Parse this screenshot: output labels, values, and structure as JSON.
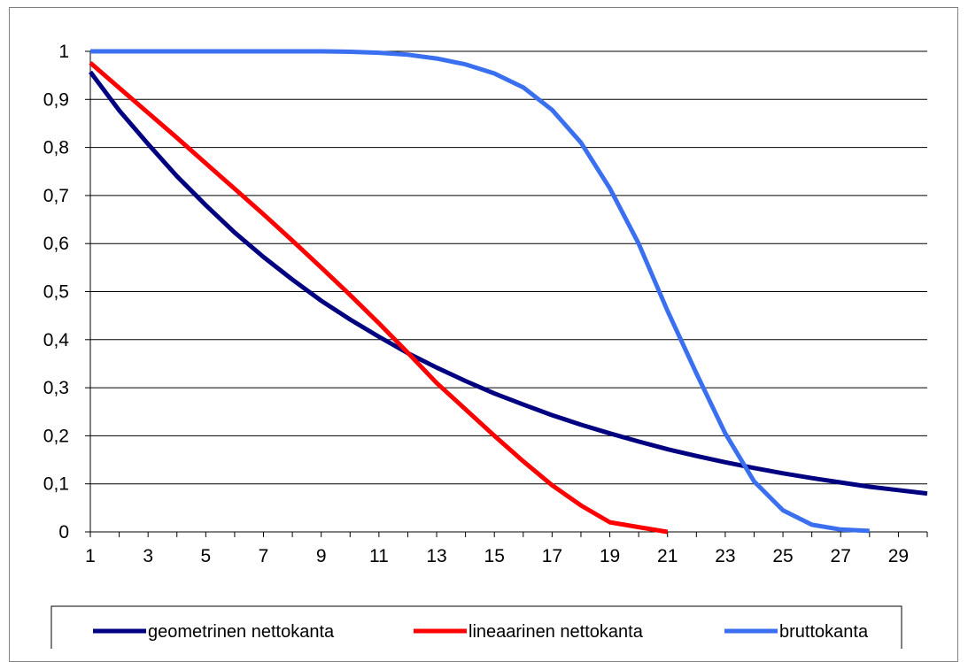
{
  "chart_data": {
    "type": "line",
    "x": [
      1,
      2,
      3,
      4,
      5,
      6,
      7,
      8,
      9,
      10,
      11,
      12,
      13,
      14,
      15,
      16,
      17,
      18,
      19,
      20,
      21,
      22,
      23,
      24,
      25,
      26,
      27,
      28,
      29,
      30
    ],
    "x_tick_labels": [
      "1",
      "3",
      "5",
      "7",
      "9",
      "11",
      "13",
      "15",
      "17",
      "19",
      "21",
      "23",
      "25",
      "27",
      "29"
    ],
    "y_tick_labels": [
      "0",
      "0,1",
      "0,2",
      "0,3",
      "0,4",
      "0,5",
      "0,6",
      "0,7",
      "0,8",
      "0,9",
      "1"
    ],
    "ylim": [
      0,
      1
    ],
    "grid": "horizontal",
    "legend_position": "bottom",
    "series": [
      {
        "name": "geometrinen nettokanta",
        "color": "#000080",
        "x": [
          1,
          2,
          3,
          4,
          5,
          6,
          7,
          8,
          9,
          10,
          11,
          12,
          13,
          14,
          15,
          16,
          17,
          18,
          19,
          20,
          21,
          22,
          23,
          24,
          25,
          26,
          27,
          28,
          29,
          30
        ],
        "values": [
          0.957,
          0.877,
          0.807,
          0.74,
          0.68,
          0.623,
          0.572,
          0.525,
          0.481,
          0.442,
          0.406,
          0.372,
          0.342,
          0.314,
          0.288,
          0.265,
          0.243,
          0.223,
          0.205,
          0.188,
          0.172,
          0.158,
          0.145,
          0.133,
          0.122,
          0.112,
          0.103,
          0.094,
          0.087,
          0.08
        ]
      },
      {
        "name": "lineaarinen nettokanta",
        "color": "#ff0000",
        "x": [
          1,
          2,
          3,
          4,
          5,
          6,
          7,
          8,
          9,
          10,
          11,
          12,
          13,
          14,
          15,
          16,
          17,
          18,
          19,
          20,
          21
        ],
        "values": [
          0.976,
          0.924,
          0.872,
          0.82,
          0.767,
          0.714,
          0.661,
          0.606,
          0.55,
          0.493,
          0.434,
          0.373,
          0.31,
          0.255,
          0.2,
          0.147,
          0.097,
          0.055,
          0.02,
          0.01,
          0.0
        ]
      },
      {
        "name": "bruttokanta",
        "color": "#3a6ff0",
        "x": [
          1,
          2,
          3,
          4,
          5,
          6,
          7,
          8,
          9,
          10,
          11,
          12,
          13,
          14,
          15,
          16,
          17,
          18,
          19,
          20,
          21,
          22,
          23,
          24,
          25,
          26,
          27,
          28
        ],
        "values": [
          1.0,
          1.0,
          1.0,
          1.0,
          1.0,
          1.0,
          1.0,
          1.0,
          1.0,
          0.999,
          0.997,
          0.993,
          0.985,
          0.973,
          0.954,
          0.925,
          0.878,
          0.81,
          0.715,
          0.6,
          0.46,
          0.33,
          0.205,
          0.105,
          0.045,
          0.015,
          0.005,
          0.002
        ]
      }
    ]
  }
}
